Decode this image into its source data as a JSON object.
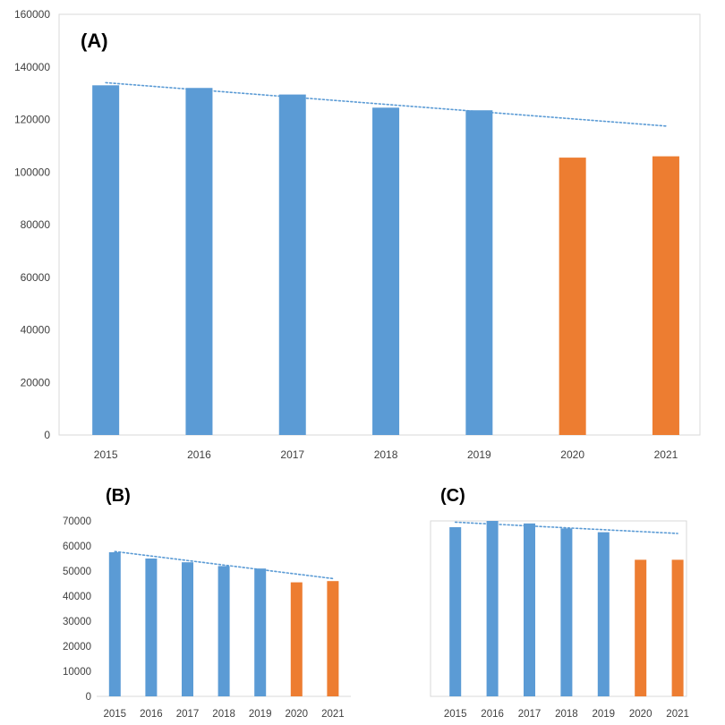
{
  "colors": {
    "observed": "#5b9bd5",
    "highlight": "#ed7d31",
    "trend": "#5b9bd5",
    "grid": "#d9d9d9",
    "tick_text": "#404040"
  },
  "chart_data": [
    {
      "id": "A",
      "type": "bar",
      "panel_label": "(A)",
      "categories": [
        "2015",
        "2016",
        "2017",
        "2018",
        "2019",
        "2020",
        "2021"
      ],
      "values": [
        133000,
        132000,
        129500,
        124500,
        123500,
        105500,
        106000
      ],
      "highlight": [
        false,
        false,
        false,
        false,
        false,
        true,
        true
      ],
      "ylim": [
        0,
        160000
      ],
      "yticks": [
        0,
        20000,
        40000,
        60000,
        80000,
        100000,
        120000,
        140000,
        160000
      ],
      "ytick_labels": [
        "0",
        "20000",
        "40000",
        "60000",
        "80000",
        "100000",
        "120000",
        "140000",
        "160000"
      ],
      "trendline": {
        "style": "dotted",
        "start": 134000,
        "end": 117500
      },
      "grid": false,
      "legend": "none"
    },
    {
      "id": "B",
      "type": "bar",
      "panel_label": "(B)",
      "categories": [
        "2015",
        "2016",
        "2017",
        "2018",
        "2019",
        "2020",
        "2021"
      ],
      "values": [
        57500,
        55000,
        53500,
        52000,
        51000,
        45500,
        46000
      ],
      "highlight": [
        false,
        false,
        false,
        false,
        false,
        true,
        true
      ],
      "ylim": [
        0,
        70000
      ],
      "yticks": [
        0,
        10000,
        20000,
        30000,
        40000,
        50000,
        60000,
        70000
      ],
      "ytick_labels": [
        "0",
        "10000",
        "20000",
        "30000",
        "40000",
        "50000",
        "60000",
        "70000"
      ],
      "trendline": {
        "style": "dotted",
        "start": 57800,
        "end": 47000
      },
      "grid": false,
      "legend": "none"
    },
    {
      "id": "C",
      "type": "bar",
      "panel_label": "(C)",
      "categories": [
        "2015",
        "2016",
        "2017",
        "2018",
        "2019",
        "2020",
        "2021"
      ],
      "values": [
        67500,
        70000,
        69000,
        67000,
        65500,
        54500,
        54500
      ],
      "highlight": [
        false,
        false,
        false,
        false,
        false,
        true,
        true
      ],
      "ylim": [
        0,
        70000
      ],
      "yticks": [],
      "ytick_labels": [],
      "trendline": {
        "style": "dotted",
        "start": 69500,
        "end": 65000
      },
      "grid": false,
      "legend": "none"
    }
  ]
}
